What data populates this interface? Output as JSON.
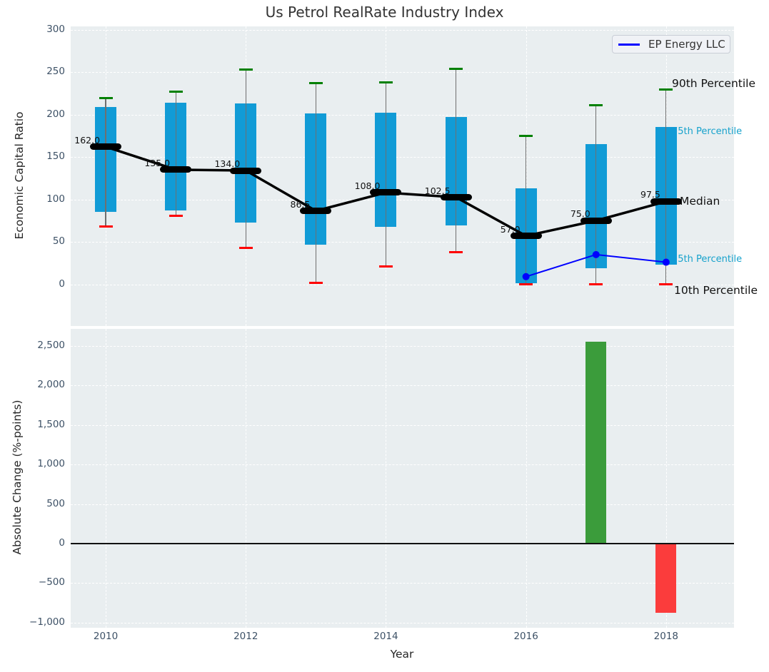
{
  "title": "Us Petrol RealRate Industry Index",
  "legend": {
    "label": "EP Energy LLC"
  },
  "colors": {
    "box_fill": "#119bd6",
    "median": "#000000",
    "whisker": "#6f6f6f",
    "cap_high": "#008000",
    "cap_low": "#ff0000",
    "ep_line": "#0000ff",
    "bar_positive": "#3b9c3b",
    "bar_negative": "#fb3c3c",
    "plot_bg": "#e9eef0",
    "grid": "#ffffff",
    "tick_label": "#3d5166",
    "cyan_label": "#17a2cc",
    "black_label": "#111111",
    "zero_line": "#111111"
  },
  "percentile_labels": [
    {
      "text": "90th Percentile",
      "style": "black",
      "y": 236
    },
    {
      "text": "75th Percentile",
      "style": "cyan",
      "y": 179
    },
    {
      "text": "Median",
      "style": "black",
      "y": 97
    },
    {
      "text": "25th Percentile",
      "style": "cyan",
      "y": 29
    },
    {
      "text": "10th Percentile",
      "style": "black",
      "y": -8
    }
  ],
  "chart_data": [
    {
      "type": "box",
      "title": "Us Petrol RealRate Industry Index",
      "ylabel": "Economic Capital Ratio",
      "yticks": [
        0,
        50,
        100,
        150,
        200,
        250,
        300
      ],
      "ylim": [
        -48,
        303
      ],
      "xlim": [
        2009.5,
        2018.97
      ],
      "grid": true,
      "legend_position": "upper right",
      "boxes": [
        {
          "year": 2010,
          "p10": 68,
          "q1": 85,
          "median": 162.0,
          "q3": 209,
          "p90": 219,
          "label": "162.0"
        },
        {
          "year": 2011,
          "p10": 81,
          "q1": 87,
          "median": 135.0,
          "q3": 214,
          "p90": 227,
          "label": "135.0"
        },
        {
          "year": 2012,
          "p10": 43,
          "q1": 73,
          "median": 134.0,
          "q3": 213,
          "p90": 253,
          "label": "134.0"
        },
        {
          "year": 2013,
          "p10": 2,
          "q1": 47,
          "median": 86.5,
          "q3": 201,
          "p90": 237,
          "label": "86.5"
        },
        {
          "year": 2014,
          "p10": 21,
          "q1": 68,
          "median": 108.0,
          "q3": 202,
          "p90": 238,
          "label": "108.0"
        },
        {
          "year": 2015,
          "p10": 38,
          "q1": 69,
          "median": 102.5,
          "q3": 197,
          "p90": 254,
          "label": "102.5"
        },
        {
          "year": 2016,
          "p10": 0,
          "q1": 1,
          "median": 57.0,
          "q3": 113,
          "p90": 175,
          "label": "57.0"
        },
        {
          "year": 2017,
          "p10": 0,
          "q1": 19,
          "median": 75.0,
          "q3": 165,
          "p90": 211,
          "label": "75.0"
        },
        {
          "year": 2018,
          "p10": 0,
          "q1": 23,
          "median": 97.5,
          "q3": 185,
          "p90": 229,
          "label": "97.5"
        }
      ],
      "overlay_series": {
        "name": "EP Energy LLC",
        "x": [
          2016,
          2017,
          2018
        ],
        "y": [
          9,
          35,
          26
        ]
      }
    },
    {
      "type": "bar",
      "ylabel": "Absolute Change (%-points)",
      "xlabel": "Year",
      "yticks": [
        -1000,
        -500,
        0,
        500,
        1000,
        1500,
        2000,
        2500
      ],
      "xticks": [
        2010,
        2012,
        2014,
        2016,
        2018
      ],
      "ylim": [
        -1080,
        2760
      ],
      "bars": [
        {
          "x": 2017,
          "value": 2550,
          "color": "positive"
        },
        {
          "x": 2018,
          "value": -875,
          "color": "negative"
        }
      ]
    }
  ]
}
